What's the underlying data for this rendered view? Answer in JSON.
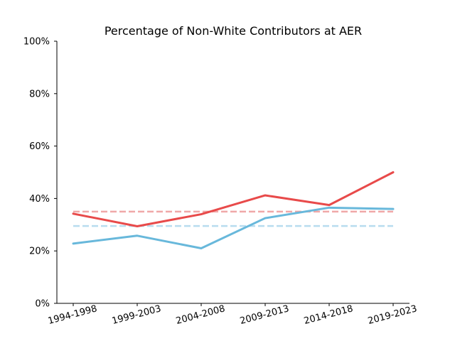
{
  "chart_data": {
    "type": "line",
    "title": "Percentage of Non-White Contributors at AER",
    "xlabel": "",
    "ylabel": "",
    "categories": [
      "1994-1998",
      "1999-2003",
      "2004-2008",
      "2009-2013",
      "2014-2018",
      "2019-2023"
    ],
    "ylim": [
      0,
      100
    ],
    "yticks": [
      0,
      20,
      40,
      60,
      80,
      100
    ],
    "ytick_labels": [
      "0%",
      "20%",
      "40%",
      "60%",
      "80%",
      "100%"
    ],
    "grid": false,
    "legend": "none",
    "series": [
      {
        "color": "#e84a4a",
        "style": "solid",
        "values": [
          34.2,
          29.4,
          34.0,
          41.2,
          37.5,
          50.0
        ]
      },
      {
        "color": "#68b8db",
        "style": "solid",
        "values": [
          22.8,
          25.8,
          21.0,
          32.5,
          36.5,
          36.0
        ]
      }
    ],
    "reference_lines": [
      {
        "color": "#f0a8a8",
        "style": "dashed",
        "value": 35.0
      },
      {
        "color": "#b8dcef",
        "style": "dashed",
        "value": 29.5
      }
    ]
  }
}
